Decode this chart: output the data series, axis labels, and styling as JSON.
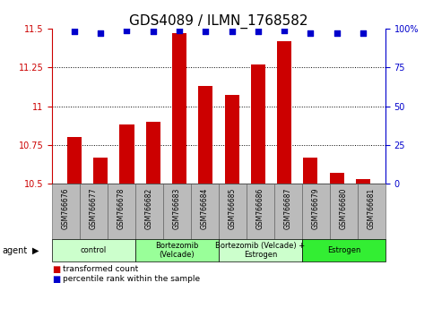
{
  "title": "GDS4089 / ILMN_1768582",
  "samples": [
    "GSM766676",
    "GSM766677",
    "GSM766678",
    "GSM766682",
    "GSM766683",
    "GSM766684",
    "GSM766685",
    "GSM766686",
    "GSM766687",
    "GSM766679",
    "GSM766680",
    "GSM766681"
  ],
  "bar_values": [
    10.8,
    10.67,
    10.88,
    10.9,
    11.47,
    11.13,
    11.07,
    11.27,
    11.42,
    10.67,
    10.57,
    10.53
  ],
  "percentile_values": [
    98,
    97,
    99,
    98,
    99,
    98,
    98,
    98,
    99,
    97,
    97,
    97
  ],
  "ylim_left": [
    10.5,
    11.5
  ],
  "ylim_right": [
    0,
    100
  ],
  "yticks_left": [
    10.5,
    10.75,
    11.0,
    11.25,
    11.5
  ],
  "ytick_labels_left": [
    "10.5",
    "10.75",
    "11",
    "11.25",
    "11.5"
  ],
  "yticks_right": [
    0,
    25,
    50,
    75,
    100
  ],
  "ytick_labels_right": [
    "0",
    "25",
    "50",
    "75",
    "100%"
  ],
  "bar_color": "#cc0000",
  "dot_color": "#0000cc",
  "bar_bottom": 10.5,
  "groups": [
    {
      "label": "control",
      "start": 0,
      "end": 2,
      "color": "#ccffcc"
    },
    {
      "label": "Bortezomib\n(Velcade)",
      "start": 3,
      "end": 5,
      "color": "#99ff99"
    },
    {
      "label": "Bortezomib (Velcade) +\nEstrogen",
      "start": 6,
      "end": 8,
      "color": "#ccffcc"
    },
    {
      "label": "Estrogen",
      "start": 9,
      "end": 11,
      "color": "#33ee33"
    }
  ],
  "agent_label": "agent",
  "legend_bar_label": "transformed count",
  "legend_dot_label": "percentile rank within the sample",
  "title_fontsize": 11,
  "tick_fontsize": 7,
  "label_fontsize": 7.5,
  "bar_width": 0.55,
  "dot_size": 18,
  "dot_marker": "s",
  "bg_color": "#ffffff",
  "plot_bg_color": "#ffffff",
  "grid_color": "#000000",
  "xlabel_area_bg": "#bbbbbb",
  "cell_border_color": "#555555"
}
